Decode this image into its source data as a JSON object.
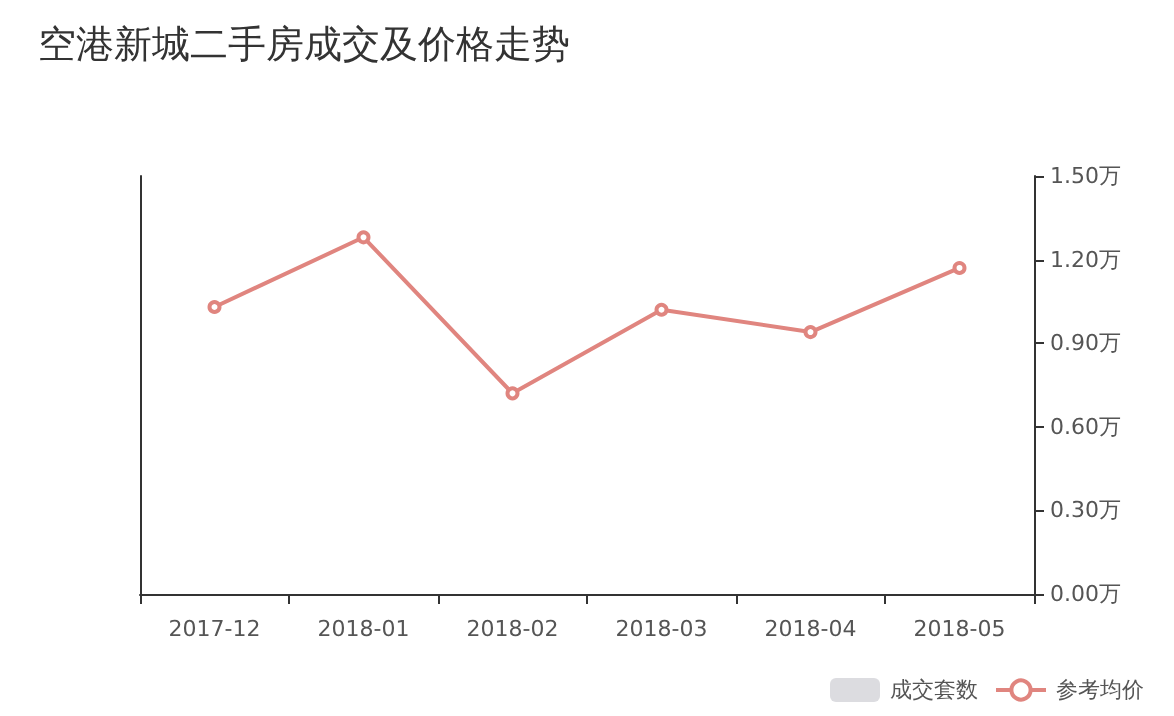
{
  "chart_data": {
    "type": "line",
    "title": "空港新城二手房成交及价格走势",
    "categories": [
      "2017-12",
      "2018-01",
      "2018-02",
      "2018-03",
      "2018-04",
      "2018-05"
    ],
    "series": [
      {
        "name": "成交套数",
        "type": "bar",
        "color": "#dcdce0",
        "values": [
          null,
          null,
          null,
          null,
          null,
          null
        ]
      },
      {
        "name": "参考均价",
        "axis": "y2",
        "color": "#e0857f",
        "marker": "circle",
        "values": [
          1.03,
          1.28,
          0.72,
          1.02,
          0.94,
          1.17
        ]
      }
    ],
    "y2lim": [
      0,
      1.5
    ],
    "y2ticks": [
      {
        "value": 0,
        "label": "0.00万"
      },
      {
        "value": 0.3,
        "label": "0.30万"
      },
      {
        "value": 0.6,
        "label": "0.60万"
      },
      {
        "value": 0.9,
        "label": "0.90万"
      },
      {
        "value": 1.2,
        "label": "1.20万"
      },
      {
        "value": 1.5,
        "label": "1.50万"
      }
    ],
    "grid": false,
    "legend": "bottom right"
  }
}
